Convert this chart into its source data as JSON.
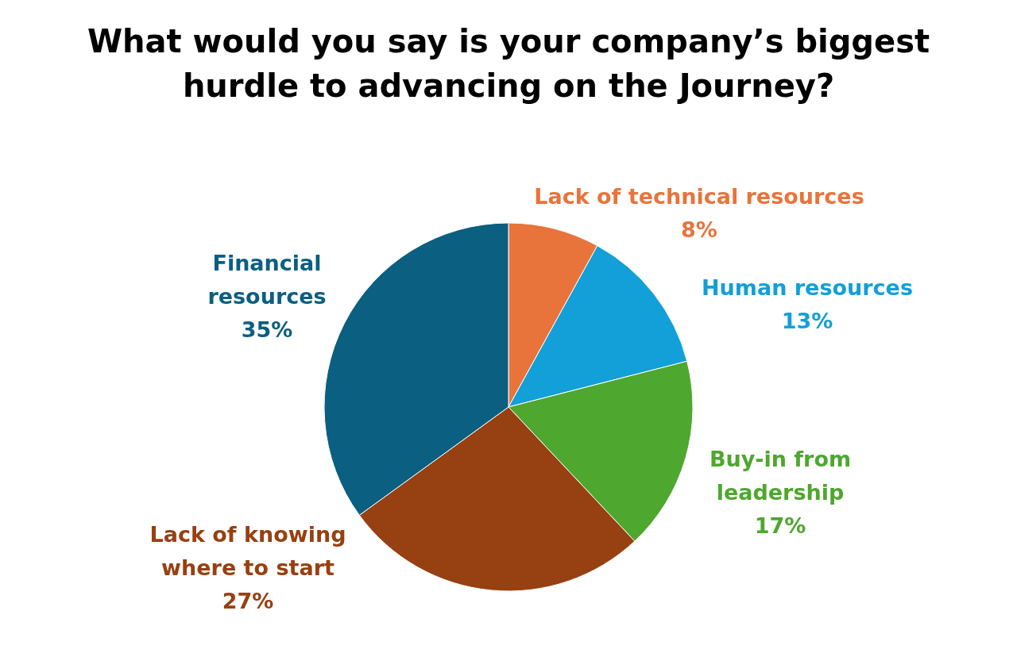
{
  "chart_data": {
    "type": "pie",
    "title": "What would you say is your company’s biggest hurdle to advancing on the Journey?",
    "categories": [
      "Lack of technical resources",
      "Human resources",
      "Buy-in from leadership",
      "Lack of knowing where to start",
      "Financial resources"
    ],
    "values": [
      8,
      13,
      17,
      27,
      35
    ],
    "value_labels": [
      "8%",
      "13%",
      "17%",
      "27%",
      "35%"
    ],
    "colors": [
      "#e8743b",
      "#139fd8",
      "#4ea72e",
      "#974011",
      "#0b5f80"
    ],
    "legend": false
  }
}
